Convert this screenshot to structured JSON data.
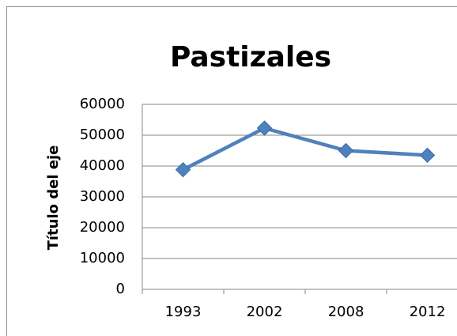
{
  "chart_data": {
    "type": "line",
    "title": "Pastizales",
    "y_label": "Título del eje",
    "categories": [
      "1993",
      "2002",
      "2008",
      "2012"
    ],
    "series": [
      {
        "name": "Pastizales",
        "color": "#4f81bd",
        "values": [
          38800,
          52300,
          45000,
          43500
        ]
      }
    ],
    "ylim": [
      0,
      60000
    ],
    "yticks": [
      0,
      10000,
      20000,
      30000,
      40000,
      50000,
      60000
    ],
    "grid": true,
    "legend": false
  }
}
